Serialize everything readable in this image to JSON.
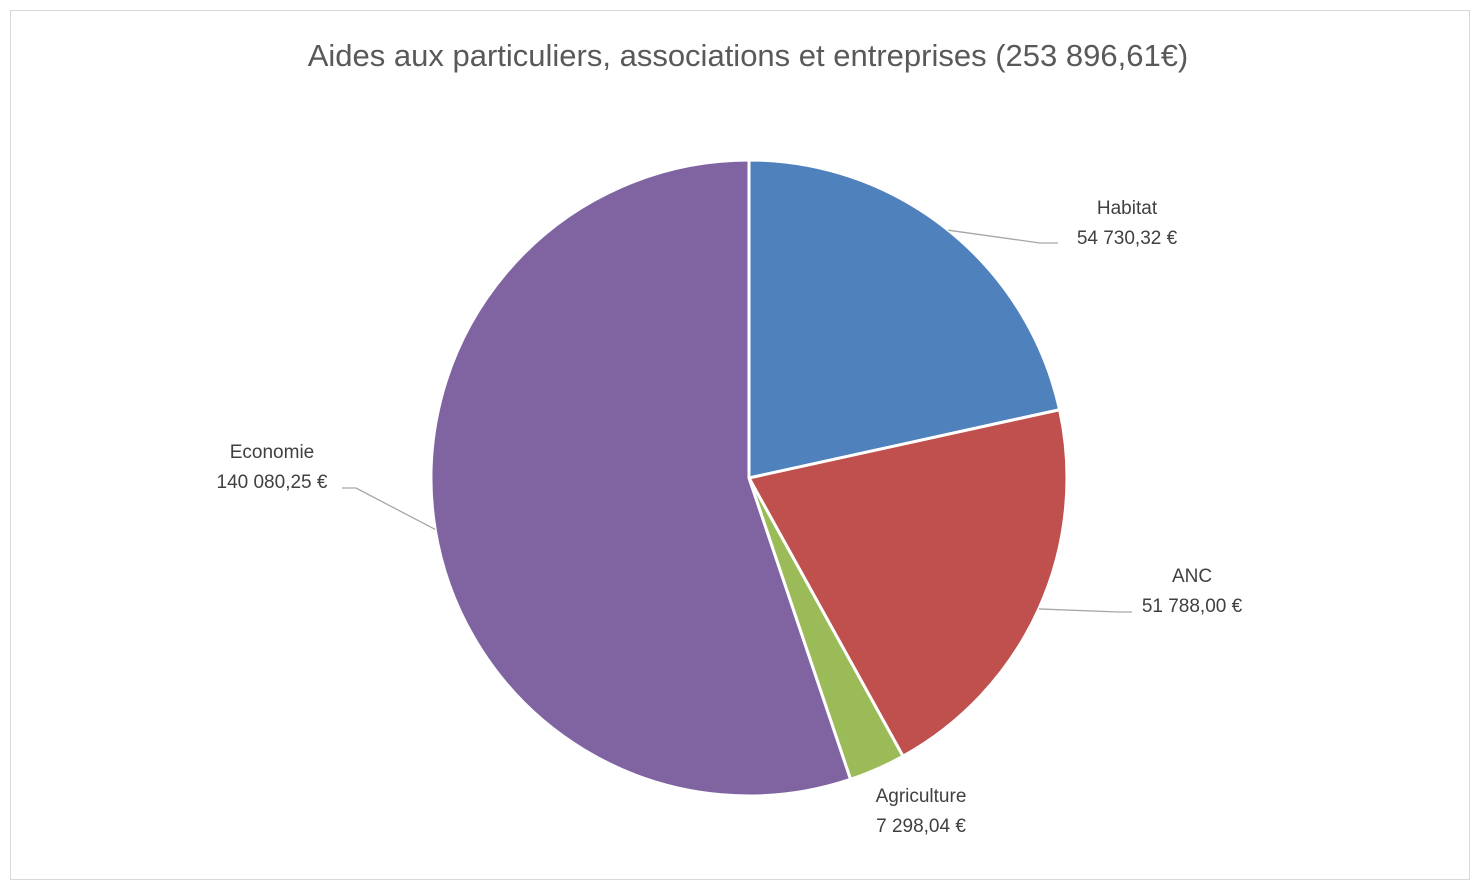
{
  "chart_data": {
    "type": "pie",
    "title": "Aides aux particuliers, associations et entreprises (253 896,61€)",
    "start_angle_deg": 0,
    "direction": "clockwise",
    "legend": "none",
    "slices": [
      {
        "name": "Habitat",
        "value": 54730.32,
        "value_label": "54 730,32 €",
        "color": "#4f81bd"
      },
      {
        "name": "ANC",
        "value": 51788.0,
        "value_label": "51 788,00 €",
        "color": "#c0504d"
      },
      {
        "name": "Agriculture",
        "value": 7298.04,
        "value_label": "7 298,04 €",
        "color": "#9bbb59"
      },
      {
        "name": "Economie",
        "value": 140080.25,
        "value_label": "140 080,25 €",
        "color": "#8064a2"
      }
    ]
  }
}
